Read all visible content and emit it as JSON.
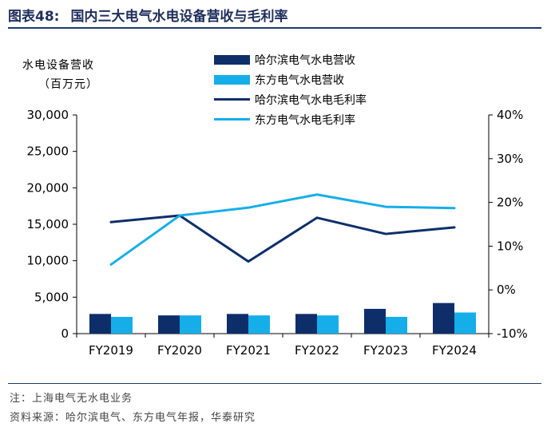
{
  "title": {
    "lead": "图表48:",
    "main": "国内三大电气水电设备营收与毛利率"
  },
  "colors": {
    "navy": "#0e2e6a",
    "sky": "#16aee8",
    "rule": "#1f3a6b"
  },
  "y_axis_label": {
    "line1": "水电设备营收",
    "line2": "（百万元）"
  },
  "legend": [
    {
      "label": "哈尔滨电气水电营收",
      "kind": "bar",
      "color": "#0e2e6a"
    },
    {
      "label": "东方电气水电营收",
      "kind": "bar",
      "color": "#16aee8"
    },
    {
      "label": "哈尔滨电气水电毛利率",
      "kind": "line",
      "color": "#0e2e6a"
    },
    {
      "label": "东方电气水电毛利率",
      "kind": "line",
      "color": "#16aee8"
    }
  ],
  "chart_data": {
    "type": "bar",
    "categories": [
      "FY2019",
      "FY2020",
      "FY2021",
      "FY2022",
      "FY2023",
      "FY2024"
    ],
    "series": [
      {
        "name": "哈尔滨电气水电营收",
        "type": "bar",
        "axis": "left",
        "color": "#0e2e6a",
        "values": [
          2700,
          2500,
          2700,
          2700,
          3400,
          4200
        ]
      },
      {
        "name": "东方电气水电营收",
        "type": "bar",
        "axis": "left",
        "color": "#16aee8",
        "values": [
          2300,
          2500,
          2500,
          2500,
          2300,
          2900
        ]
      },
      {
        "name": "哈尔滨电气水电毛利率",
        "type": "line",
        "axis": "right",
        "color": "#0e2e6a",
        "values": [
          15.5,
          17.0,
          6.5,
          16.5,
          12.8,
          14.3
        ]
      },
      {
        "name": "东方电气水电毛利率",
        "type": "line",
        "axis": "right",
        "color": "#16aee8",
        "values": [
          5.8,
          17.0,
          18.8,
          21.8,
          19.0,
          18.7
        ]
      }
    ],
    "left_axis": {
      "ylim": [
        0,
        30000
      ],
      "ticks": [
        0,
        5000,
        10000,
        15000,
        20000,
        25000,
        30000
      ],
      "tick_labels": [
        "0",
        "5,000",
        "10,000",
        "15,000",
        "20,000",
        "25,000",
        "30,000"
      ]
    },
    "right_axis": {
      "ylim": [
        -10,
        40
      ],
      "ticks": [
        -10,
        0,
        10,
        20,
        30,
        40
      ],
      "tick_labels": [
        "-10%",
        "0%",
        "10%",
        "20%",
        "30%",
        "40%"
      ]
    },
    "legend_position": "top-center",
    "grid": false
  },
  "footer": {
    "note": "注：上海电气无水电业务",
    "source": "资料来源：哈尔滨电气、东方电气年报，华泰研究"
  }
}
